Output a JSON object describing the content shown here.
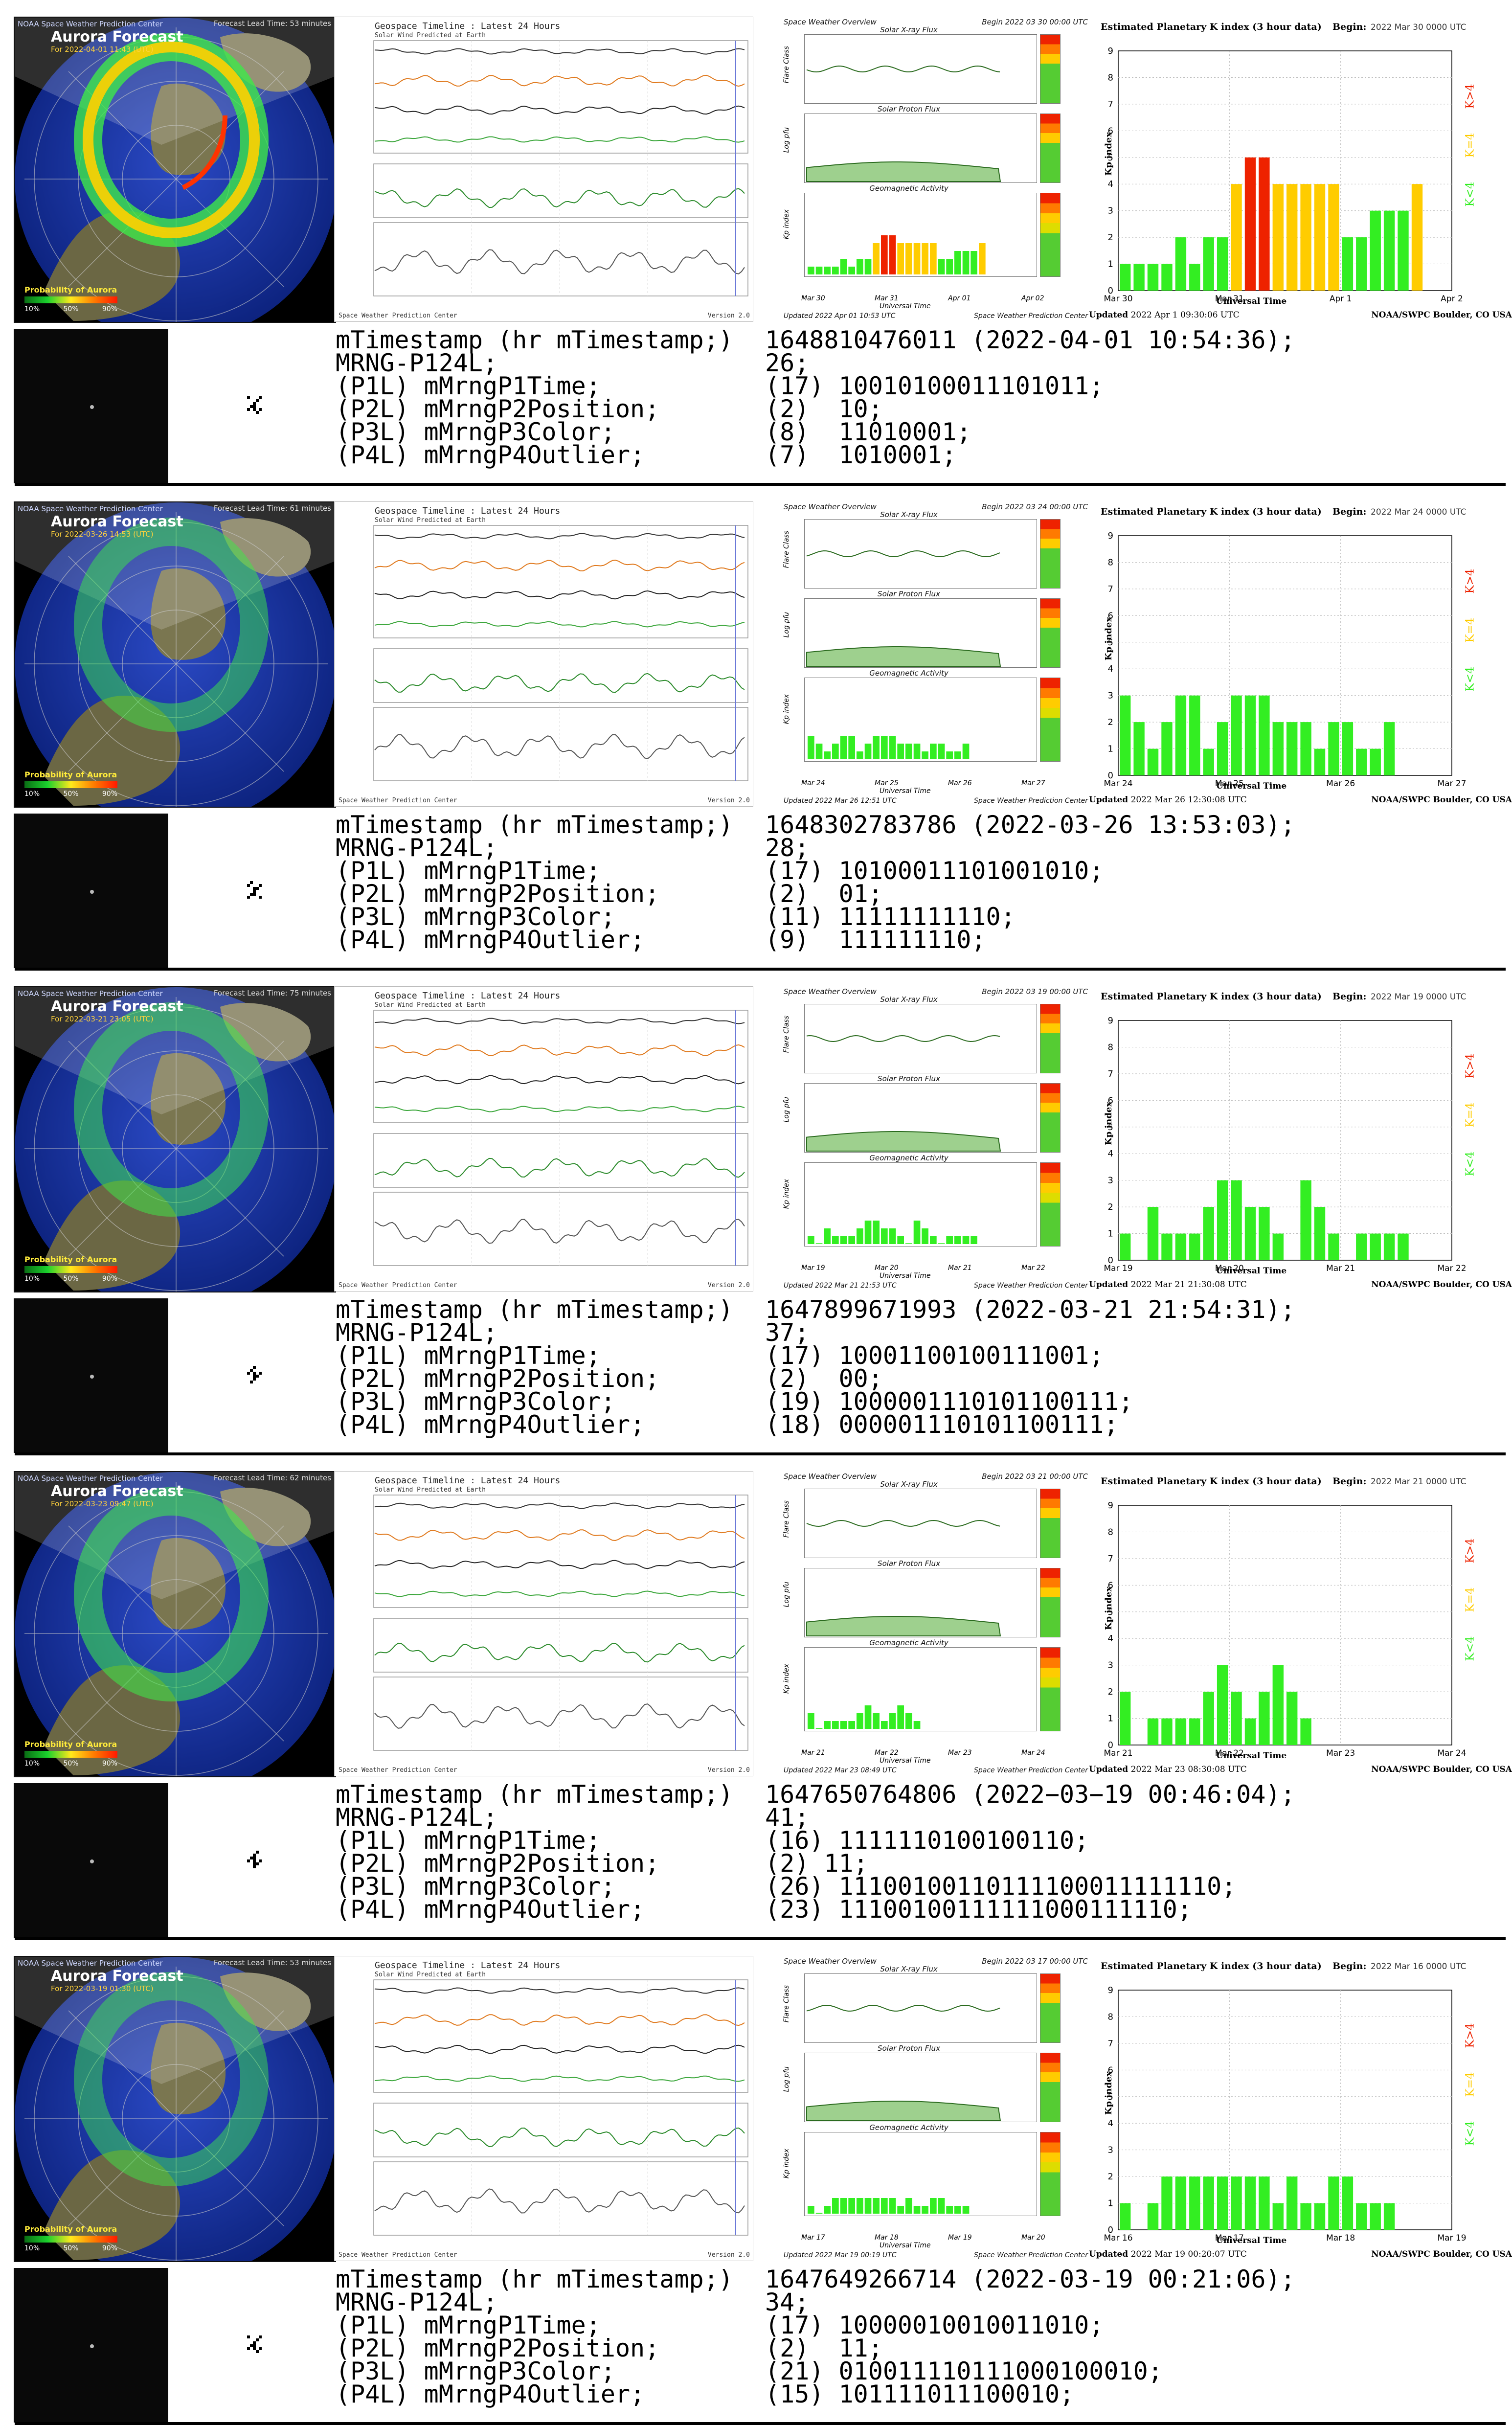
{
  "colors": {
    "ocean": "#0c2b9c",
    "land": "#6b6744",
    "aurora_green": "#3ee84a",
    "kp_green": "#33ee22",
    "kp_yellow": "#ffcc00",
    "kp_red": "#ee2200",
    "thumb_bg": "#090909"
  },
  "common": {
    "aurora_header": "NOAA Space Weather Prediction Center",
    "aurora_title": "Aurora Forecast",
    "prob_label": "Probability of Aurora",
    "prob_ticks": [
      "10%",
      "50%",
      "90%"
    ],
    "geo_title": "Geospace Timeline : Latest 24 Hours",
    "geo_sub": "Solar Wind Predicted at Earth",
    "geo_footer": "Space Weather Prediction Center",
    "geo_version": "Version 2.0",
    "sw_title": "Space Weather Overview",
    "sw_xray": "Solar X-ray Flux",
    "sw_proton": "Solar Proton Flux",
    "sw_geomag": "Geomagnetic Activity",
    "sw_flare_axis": "Flare Class",
    "sw_proton_axis": "Log pfu",
    "sw_kp_axis": "Kp index",
    "sw_ut": "Universal Time",
    "sw_footer_right": "Space Weather Prediction Center",
    "kp_title": "Estimated Planetary K index (3 hour data)",
    "kp_begin_label": "Begin:",
    "kp_ylabel": "Kp index",
    "kp_xlabel": "Universal Time",
    "kp_updated_label": "Updated",
    "kp_noaa": "NOAA/SWPC Boulder, CO USA",
    "kp_k5": "K>4",
    "kp_k4": "K=4",
    "kp_k3": "K<4",
    "info_labels": {
      "ts": "mTimestamp (hr mTimestamp;)",
      "mrng": "MRNG-P124L;",
      "p1": "(P1L) mMrngP1Time;",
      "p2": "(P2L) mMrngP2Position;",
      "p3": "(P3L) mMrngP3Color;",
      "p4": "(P4L) mMrngP4Outlier;"
    }
  },
  "panels": [
    {
      "aurora_date": "For 2022-04-01 11:43 (UTC)",
      "aurora_lead": "Forecast Lead Time: 53 minutes",
      "sw_begin": "Begin 2022 03 30 00:00 UTC",
      "sw_updated": "Updated 2022 Apr 01 10:53 UTC",
      "sw_xticks": [
        "Mar 30",
        "Mar 31",
        "Apr 01",
        "Apr 02"
      ],
      "kp_begin": "2022 Mar 30 0000 UTC",
      "kp_updated": "2022 Apr  1 09:30:06 UTC",
      "chart_data": {
        "type": "bar",
        "title": "Estimated Planetary K index (3 hour data)",
        "ylabel": "Kp index",
        "xlabel": "Universal Time",
        "ylim": [
          0,
          9
        ],
        "xticks": [
          "Mar 30",
          "Mar 31",
          "Apr 1",
          "Apr 2"
        ],
        "values": [
          1,
          1,
          1,
          1,
          2,
          1,
          2,
          2,
          4,
          5,
          5,
          4,
          4,
          4,
          4,
          4,
          2,
          2,
          3,
          3,
          3,
          4
        ]
      },
      "info": {
        "ts_value": "1648810476011 (2022-04-01 10:54:36);",
        "mrng_value": "26;",
        "p1": "(17) 10010100011101011;",
        "p2": "(2)  10;",
        "p3": "(8)  11010001;",
        "p4": "(7)  1010001;"
      },
      "aurora_intensity": 1.0
    },
    {
      "aurora_date": "For 2022-03-26 14:53 (UTC)",
      "aurora_lead": "Forecast Lead Time: 61 minutes",
      "sw_begin": "Begin 2022 03 24 00:00 UTC",
      "sw_updated": "Updated 2022 Mar 26 12:51 UTC",
      "sw_xticks": [
        "Mar 24",
        "Mar 25",
        "Mar 26",
        "Mar 27"
      ],
      "kp_begin": "2022 Mar 24 0000 UTC",
      "kp_updated": "2022 Mar 26 12:30:08 UTC",
      "chart_data": {
        "type": "bar",
        "title": "Estimated Planetary K index (3 hour data)",
        "ylabel": "Kp index",
        "xlabel": "Universal Time",
        "ylim": [
          0,
          9
        ],
        "xticks": [
          "Mar 24",
          "Mar 25",
          "Mar 26",
          "Mar 27"
        ],
        "values": [
          3,
          2,
          1,
          2,
          3,
          3,
          1,
          2,
          3,
          3,
          3,
          2,
          2,
          2,
          1,
          2,
          2,
          1,
          1,
          2
        ]
      },
      "info": {
        "ts_value": "1648302783786 (2022-03-26 13:53:03);",
        "mrng_value": "28;",
        "p1": "(17) 10100011101001010;",
        "p2": "(2)  01;",
        "p3": "(11) 11111111110;",
        "p4": "(9)  111111110;"
      },
      "aurora_intensity": 0.35
    },
    {
      "aurora_date": "For 2022-03-21 23:05 (UTC)",
      "aurora_lead": "Forecast Lead Time: 75 minutes",
      "sw_begin": "Begin 2022 03 19 00:00 UTC",
      "sw_updated": "Updated 2022 Mar 21 21:53 UTC",
      "sw_xticks": [
        "Mar 19",
        "Mar 20",
        "Mar 21",
        "Mar 22"
      ],
      "kp_begin": "2022 Mar 19 0000 UTC",
      "kp_updated": "2022 Mar 21 21:30:08 UTC",
      "chart_data": {
        "type": "bar",
        "title": "Estimated Planetary K index (3 hour data)",
        "ylabel": "Kp index",
        "xlabel": "Universal Time",
        "ylim": [
          0,
          9
        ],
        "xticks": [
          "Mar 19",
          "Mar 20",
          "Mar 21",
          "Mar 22"
        ],
        "values": [
          1,
          0,
          2,
          1,
          1,
          1,
          2,
          3,
          3,
          2,
          2,
          1,
          0,
          3,
          2,
          1,
          0,
          1,
          1,
          1,
          1
        ]
      },
      "info": {
        "ts_value": "1647899671993 (2022-03-21 21:54:31);",
        "mrng_value": "37;",
        "p1": "(17) 10001100100111001;",
        "p2": "(2)  00;",
        "p3": "(19) 1000001110101100111;",
        "p4": "(18) 000001110101100111;"
      },
      "aurora_intensity": 0.4
    },
    {
      "aurora_date": "For 2022-03-23 09:47 (UTC)",
      "aurora_lead": "Forecast Lead Time: 62 minutes",
      "sw_begin": "Begin 2022 03 21 00:00 UTC",
      "sw_updated": "Updated 2022 Mar 23 08:49 UTC",
      "sw_xticks": [
        "Mar 21",
        "Mar 22",
        "Mar 23",
        "Mar 24"
      ],
      "kp_begin": "2022 Mar 21 0000 UTC",
      "kp_updated": "2022 Mar 23 08:30:08 UTC",
      "chart_data": {
        "type": "bar",
        "title": "Estimated Planetary K index (3 hour data)",
        "ylabel": "Kp index",
        "xlabel": "Universal Time",
        "ylim": [
          0,
          9
        ],
        "xticks": [
          "Mar 21",
          "Mar 22",
          "Mar 23",
          "Mar 24"
        ],
        "values": [
          2,
          0,
          1,
          1,
          1,
          1,
          2,
          3,
          2,
          1,
          2,
          3,
          2,
          1
        ]
      },
      "info": {
        "ts_value": "1647650764806 (2022−03−19 00:46:04);",
        "mrng_value": "41;",
        "p1": "(16) 1111110100100110;",
        "p2": "(2) 11;",
        "p3": "(26) 11100100110111100011111110;",
        "p4": "(23) 11100100111111000111110;"
      },
      "aurora_intensity": 0.5
    },
    {
      "aurora_date": "For 2022-03-19 01:30 (UTC)",
      "aurora_lead": "Forecast Lead Time: 53 minutes",
      "sw_begin": "Begin 2022 03 17 00:00 UTC",
      "sw_updated": "Updated 2022 Mar 19 00:19 UTC",
      "sw_xticks": [
        "Mar 17",
        "Mar 18",
        "Mar 19",
        "Mar 20"
      ],
      "kp_begin": "2022 Mar 16 0000 UTC",
      "kp_updated": "2022 Mar 19 00:20:07 UTC",
      "chart_data": {
        "type": "bar",
        "title": "Estimated Planetary K index (3 hour data)",
        "ylabel": "Kp index",
        "xlabel": "Universal Time",
        "ylim": [
          0,
          9
        ],
        "xticks": [
          "Mar 16",
          "Mar 17",
          "Mar 18",
          "Mar 19"
        ],
        "values": [
          1,
          0,
          1,
          2,
          2,
          2,
          2,
          2,
          2,
          2,
          2,
          1,
          2,
          1,
          1,
          2,
          2,
          1,
          1,
          1
        ]
      },
      "info": {
        "ts_value": "1647649266714 (2022-03-19 00:21:06);",
        "mrng_value": "34;",
        "p1": "(17) 10000010010011010;",
        "p2": "(2)  11;",
        "p3": "(21) 010011110111000100010;",
        "p4": "(15) 101111011100010;"
      },
      "aurora_intensity": 0.3
    }
  ]
}
